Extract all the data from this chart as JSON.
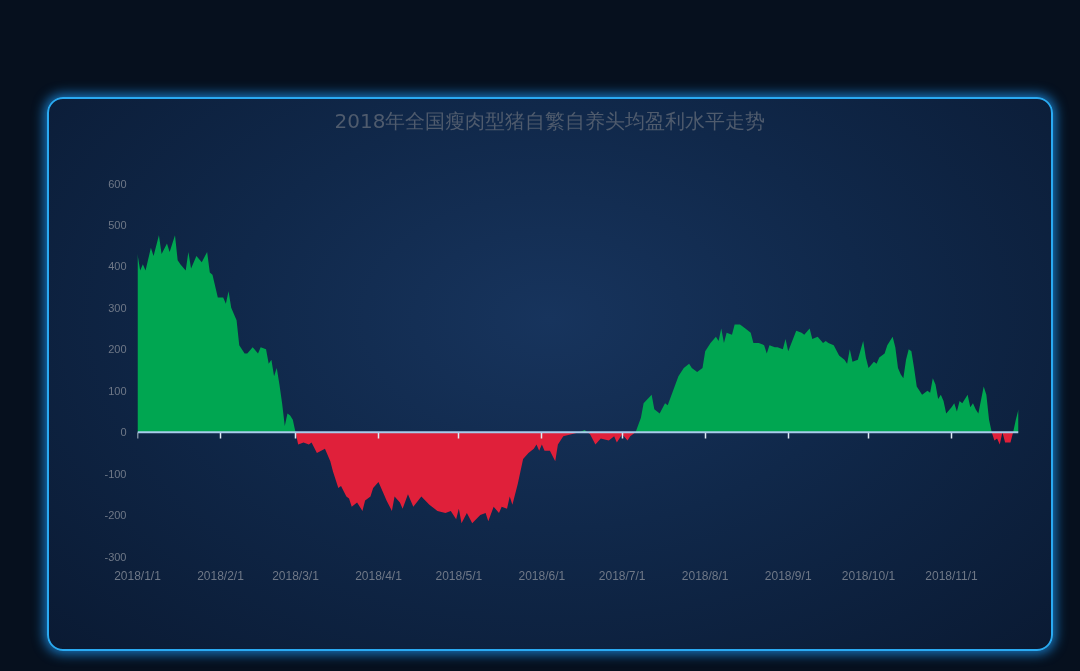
{
  "chart_data": {
    "type": "area",
    "title": "2018年全国瘦肉型猪自繁自养头均盈利水平走势",
    "series": [
      {
        "color": "#00a651",
        "x": [
          "2018-01-01",
          "2018-01-02",
          "2018-01-03",
          "2018-01-04",
          "2018-01-06",
          "2018-01-07",
          "2018-01-09",
          "2018-01-10",
          "2018-01-12",
          "2018-01-13",
          "2018-01-15",
          "2018-01-16",
          "2018-01-17",
          "2018-01-19",
          "2018-01-20",
          "2018-01-21",
          "2018-01-23",
          "2018-01-25",
          "2018-01-27",
          "2018-01-28",
          "2018-01-29",
          "2018-01-31",
          "2018-02-02",
          "2018-02-03",
          "2018-02-04",
          "2018-02-05",
          "2018-02-07",
          "2018-02-08",
          "2018-02-10",
          "2018-02-11",
          "2018-02-13",
          "2018-02-15",
          "2018-02-16",
          "2018-02-18",
          "2018-02-19",
          "2018-02-20",
          "2018-02-21",
          "2018-02-22",
          "2018-02-23",
          "2018-02-24",
          "2018-02-25",
          "2018-02-26",
          "2018-02-27",
          "2018-02-28",
          "2018-03-01",
          "2018-06-15",
          "2018-06-17",
          "2018-06-18",
          "2018-07-06",
          "2018-07-08",
          "2018-07-09",
          "2018-07-12",
          "2018-07-13",
          "2018-07-15",
          "2018-07-17",
          "2018-07-18",
          "2018-07-20",
          "2018-07-22",
          "2018-07-24",
          "2018-07-26",
          "2018-07-27",
          "2018-07-29",
          "2018-07-31",
          "2018-08-01",
          "2018-08-03",
          "2018-08-05",
          "2018-08-06",
          "2018-08-07",
          "2018-08-08",
          "2018-08-09",
          "2018-08-11",
          "2018-08-12",
          "2018-08-14",
          "2018-08-16",
          "2018-08-18",
          "2018-08-19",
          "2018-08-21",
          "2018-08-23",
          "2018-08-24",
          "2018-08-25",
          "2018-08-27",
          "2018-08-28",
          "2018-08-30",
          "2018-08-31",
          "2018-09-01",
          "2018-09-04",
          "2018-09-06",
          "2018-09-07",
          "2018-09-09",
          "2018-09-10",
          "2018-09-12",
          "2018-09-14",
          "2018-09-15",
          "2018-09-16",
          "2018-09-18",
          "2018-09-20",
          "2018-09-22",
          "2018-09-23",
          "2018-09-24",
          "2018-09-25",
          "2018-09-27",
          "2018-09-29",
          "2018-09-30",
          "2018-10-01",
          "2018-10-03",
          "2018-10-04",
          "2018-10-05",
          "2018-10-07",
          "2018-10-08",
          "2018-10-10",
          "2018-10-11",
          "2018-10-12",
          "2018-10-13",
          "2018-10-14",
          "2018-10-15",
          "2018-10-16",
          "2018-10-17",
          "2018-10-18",
          "2018-10-19",
          "2018-10-21",
          "2018-10-23",
          "2018-10-24",
          "2018-10-25",
          "2018-10-26",
          "2018-10-27",
          "2018-10-28",
          "2018-10-29",
          "2018-10-30",
          "2018-11-01",
          "2018-11-02",
          "2018-11-03",
          "2018-11-04",
          "2018-11-05",
          "2018-11-07",
          "2018-11-08",
          "2018-11-09",
          "2018-11-10",
          "2018-11-11",
          "2018-11-13",
          "2018-11-14",
          "2018-11-15",
          "2018-11-16",
          "2018-11-24",
          "2018-11-25",
          "2018-11-26"
        ],
        "values": [
          430,
          390,
          405,
          390,
          445,
          425,
          475,
          430,
          455,
          435,
          475,
          415,
          405,
          390,
          435,
          395,
          425,
          410,
          435,
          385,
          380,
          325,
          325,
          310,
          340,
          300,
          270,
          210,
          190,
          190,
          205,
          190,
          205,
          200,
          165,
          175,
          135,
          155,
          115,
          70,
          15,
          45,
          40,
          30,
          0,
          0,
          5,
          0,
          0,
          35,
          70,
          90,
          55,
          45,
          70,
          65,
          100,
          135,
          155,
          165,
          155,
          145,
          155,
          195,
          215,
          230,
          220,
          250,
          215,
          240,
          235,
          260,
          260,
          250,
          240,
          215,
          215,
          210,
          190,
          210,
          205,
          205,
          200,
          225,
          195,
          245,
          240,
          235,
          250,
          225,
          230,
          215,
          220,
          215,
          210,
          185,
          175,
          165,
          200,
          170,
          175,
          220,
          180,
          155,
          170,
          165,
          180,
          190,
          210,
          230,
          205,
          155,
          140,
          130,
          175,
          200,
          195,
          155,
          110,
          90,
          100,
          95,
          130,
          115,
          80,
          90,
          75,
          45,
          60,
          70,
          50,
          75,
          70,
          90,
          60,
          70,
          55,
          45,
          110,
          90,
          30,
          0,
          0,
          30,
          55
        ]
      },
      {
        "color": "#e0203a",
        "x": [
          "2018-03-01",
          "2018-03-02",
          "2018-03-04",
          "2018-03-06",
          "2018-03-07",
          "2018-03-09",
          "2018-03-12",
          "2018-03-14",
          "2018-03-15",
          "2018-03-17",
          "2018-03-18",
          "2018-03-20",
          "2018-03-21",
          "2018-03-22",
          "2018-03-24",
          "2018-03-26",
          "2018-03-27",
          "2018-03-29",
          "2018-03-30",
          "2018-04-01",
          "2018-04-03",
          "2018-04-04",
          "2018-04-06",
          "2018-04-07",
          "2018-04-09",
          "2018-04-10",
          "2018-04-12",
          "2018-04-14",
          "2018-04-17",
          "2018-04-20",
          "2018-04-23",
          "2018-04-26",
          "2018-04-28",
          "2018-04-30",
          "2018-05-01",
          "2018-05-02",
          "2018-05-04",
          "2018-05-06",
          "2018-05-09",
          "2018-05-11",
          "2018-05-12",
          "2018-05-14",
          "2018-05-16",
          "2018-05-17",
          "2018-05-19",
          "2018-05-20",
          "2018-05-21",
          "2018-05-23",
          "2018-05-25",
          "2018-05-27",
          "2018-05-29",
          "2018-05-30",
          "2018-05-31",
          "2018-06-01",
          "2018-06-02",
          "2018-06-04",
          "2018-06-06",
          "2018-06-07",
          "2018-06-09",
          "2018-06-12",
          "2018-06-15",
          "2018-06-18",
          "2018-06-19",
          "2018-06-21",
          "2018-06-23",
          "2018-06-26",
          "2018-06-28",
          "2018-06-29",
          "2018-07-01",
          "2018-07-03",
          "2018-07-04",
          "2018-07-06",
          "2018-11-16",
          "2018-11-17",
          "2018-11-18",
          "2018-11-19",
          "2018-11-20",
          "2018-11-21",
          "2018-11-23",
          "2018-11-24"
        ],
        "values": [
          0,
          -30,
          -25,
          -30,
          -25,
          -50,
          -40,
          -70,
          -95,
          -135,
          -130,
          -155,
          -160,
          -180,
          -170,
          -190,
          -165,
          -155,
          -135,
          -120,
          -150,
          -165,
          -190,
          -155,
          -170,
          -185,
          -150,
          -180,
          -155,
          -175,
          -190,
          -195,
          -190,
          -210,
          -185,
          -220,
          -195,
          -220,
          -200,
          -195,
          -215,
          -180,
          -195,
          -180,
          -185,
          -155,
          -175,
          -125,
          -65,
          -50,
          -40,
          -30,
          -45,
          -30,
          -45,
          -45,
          -70,
          -30,
          -10,
          -5,
          0,
          0,
          -5,
          -30,
          -15,
          -20,
          -10,
          -25,
          -5,
          -20,
          -10,
          0,
          0,
          -20,
          -15,
          -30,
          0,
          -25,
          -25,
          0
        ]
      }
    ],
    "xlim": [
      "2018-01-01",
      "2018-11-26"
    ],
    "xticks": [
      {
        "value": "2018-01-01",
        "label": "2018/1/1"
      },
      {
        "value": "2018-02-01",
        "label": "2018/2/1"
      },
      {
        "value": "2018-03-01",
        "label": "2018/3/1"
      },
      {
        "value": "2018-04-01",
        "label": "2018/4/1"
      },
      {
        "value": "2018-05-01",
        "label": "2018/5/1"
      },
      {
        "value": "2018-06-01",
        "label": "2018/6/1"
      },
      {
        "value": "2018-07-01",
        "label": "2018/7/1"
      },
      {
        "value": "2018-08-01",
        "label": "2018/8/1"
      },
      {
        "value": "2018-09-01",
        "label": "2018/9/1"
      },
      {
        "value": "2018-10-01",
        "label": "2018/10/1"
      },
      {
        "value": "2018-11-01",
        "label": "2018/11/1"
      }
    ],
    "ylim": [
      -300,
      600
    ],
    "yticks": [
      -300,
      -200,
      -100,
      0,
      100,
      200,
      300,
      400,
      500,
      600
    ],
    "ref_lines": [
      {
        "axis": "y",
        "value": 0,
        "color": "#a8cbeb"
      }
    ]
  }
}
